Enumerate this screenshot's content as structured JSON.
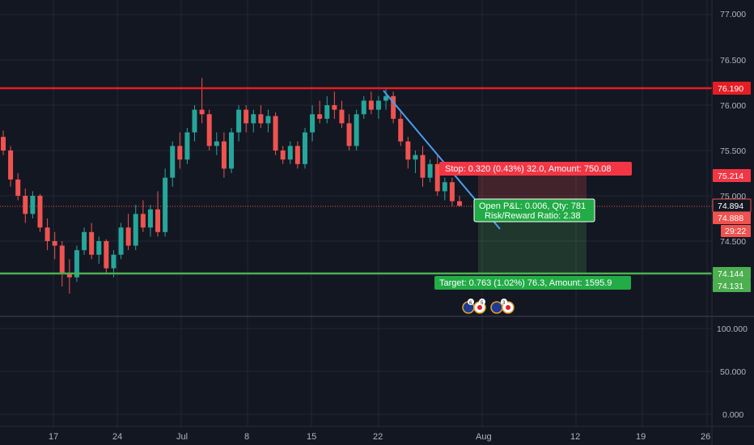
{
  "chart": {
    "price_axis_labels": [
      "77.000",
      "76.500",
      "76.000",
      "75.500",
      "75.000",
      "74.500"
    ],
    "volume_axis_labels": [
      "100.000",
      "50.000",
      "0.000"
    ],
    "date_labels": [
      "17",
      "24",
      "Jul",
      "8",
      "15",
      "22",
      "Aug",
      "12",
      "19",
      "26"
    ],
    "resistance_price": "76.190",
    "support_price": "74.144",
    "stop_level_price": "75.214",
    "current_price_close": "74.894",
    "current_price_bid": "74.888",
    "countdown": "29:22",
    "support_sub_price": "74.131",
    "stop_label": "Stop: 0.320 (0.43%) 32.0, Amount: 750.08",
    "open_pnl_line1": "Open P&L: 0.006, Qty: 781",
    "open_pnl_line2": "Risk/Reward Ratio: 2.38",
    "target_label": "Target: 0.763 (1.02%) 76.3, Amount: 1595.9",
    "event_icon_counts": [
      "6",
      "5",
      "3"
    ]
  },
  "colors": {
    "background": "#131722",
    "grid": "#2a2e39",
    "up_candle": "#26a69a",
    "down_candle": "#ef5350",
    "resistance": "#e31e24",
    "support": "#4caf50",
    "trendline": "#2196f3",
    "stop_zone": "rgba(239,83,80,0.25)",
    "target_zone": "rgba(76,175,80,0.22)"
  },
  "chart_data": {
    "type": "candlestick",
    "x_ticks": [
      "17",
      "24",
      "Jul",
      "8",
      "15",
      "22",
      "Aug",
      "12",
      "19",
      "26"
    ],
    "y_range": [
      74.0,
      77.2
    ],
    "horizontal_levels": [
      {
        "price": 76.19,
        "color": "#e31e24"
      },
      {
        "price": 74.144,
        "color": "#4caf50"
      }
    ],
    "trendline": {
      "from": {
        "date": "Jul 22",
        "price": 76.17
      },
      "to": {
        "date": "Aug 3",
        "price": 74.67
      }
    },
    "position": {
      "entry": 74.894,
      "stop": 75.214,
      "target": 74.131,
      "risk_reward": 2.38
    },
    "candles_ohlc": [
      [
        75.65,
        75.72,
        75.45,
        75.5
      ],
      [
        75.5,
        75.55,
        75.1,
        75.18
      ],
      [
        75.18,
        75.25,
        74.95,
        75.0
      ],
      [
        75.0,
        75.08,
        74.7,
        74.8
      ],
      [
        74.8,
        75.05,
        74.75,
        75.0
      ],
      [
        75.0,
        75.02,
        74.6,
        74.65
      ],
      [
        74.65,
        74.75,
        74.4,
        74.5
      ],
      [
        74.5,
        74.6,
        74.3,
        74.45
      ],
      [
        74.45,
        74.5,
        74.0,
        74.15
      ],
      [
        74.15,
        74.3,
        73.92,
        74.1
      ],
      [
        74.1,
        74.45,
        74.05,
        74.4
      ],
      [
        74.4,
        74.65,
        74.35,
        74.6
      ],
      [
        74.6,
        74.7,
        74.3,
        74.35
      ],
      [
        74.35,
        74.55,
        74.25,
        74.5
      ],
      [
        74.5,
        74.52,
        74.15,
        74.2
      ],
      [
        74.2,
        74.4,
        74.1,
        74.35
      ],
      [
        74.35,
        74.7,
        74.3,
        74.65
      ],
      [
        74.65,
        74.8,
        74.4,
        74.45
      ],
      [
        74.45,
        74.9,
        74.4,
        74.8
      ],
      [
        74.8,
        74.95,
        74.6,
        74.65
      ],
      [
        74.65,
        74.9,
        74.55,
        74.85
      ],
      [
        74.85,
        75.05,
        74.55,
        74.6
      ],
      [
        74.6,
        75.3,
        74.55,
        75.2
      ],
      [
        75.2,
        75.6,
        75.1,
        75.55
      ],
      [
        75.55,
        75.7,
        75.3,
        75.4
      ],
      [
        75.4,
        75.75,
        75.35,
        75.7
      ],
      [
        75.7,
        76.0,
        75.6,
        75.95
      ],
      [
        75.95,
        76.3,
        75.8,
        75.9
      ],
      [
        75.9,
        75.95,
        75.5,
        75.55
      ],
      [
        75.55,
        75.7,
        75.45,
        75.6
      ],
      [
        75.6,
        75.7,
        75.2,
        75.3
      ],
      [
        75.3,
        75.75,
        75.25,
        75.7
      ],
      [
        75.7,
        76.0,
        75.6,
        75.95
      ],
      [
        75.95,
        76.0,
        75.7,
        75.8
      ],
      [
        75.8,
        75.95,
        75.7,
        75.9
      ],
      [
        75.9,
        76.0,
        75.75,
        75.8
      ],
      [
        75.8,
        75.95,
        75.7,
        75.88
      ],
      [
        75.88,
        75.92,
        75.45,
        75.5
      ],
      [
        75.5,
        75.55,
        75.35,
        75.4
      ],
      [
        75.4,
        75.6,
        75.35,
        75.55
      ],
      [
        75.55,
        75.6,
        75.3,
        75.35
      ],
      [
        75.35,
        75.75,
        75.3,
        75.7
      ],
      [
        75.7,
        76.0,
        75.6,
        75.9
      ],
      [
        75.9,
        76.05,
        75.8,
        75.85
      ],
      [
        75.85,
        76.1,
        75.8,
        76.0
      ],
      [
        76.0,
        76.15,
        75.85,
        75.95
      ],
      [
        75.95,
        76.05,
        75.75,
        75.8
      ],
      [
        75.8,
        75.9,
        75.5,
        75.55
      ],
      [
        75.55,
        75.95,
        75.5,
        75.9
      ],
      [
        75.9,
        76.1,
        75.85,
        76.05
      ],
      [
        76.05,
        76.15,
        75.9,
        75.95
      ],
      [
        75.95,
        76.1,
        75.85,
        76.05
      ],
      [
        76.05,
        76.18,
        75.95,
        76.1
      ],
      [
        76.1,
        76.15,
        75.8,
        75.85
      ],
      [
        75.85,
        75.95,
        75.55,
        75.6
      ],
      [
        75.6,
        75.65,
        75.3,
        75.4
      ],
      [
        75.4,
        75.5,
        75.25,
        75.45
      ],
      [
        75.45,
        75.55,
        75.1,
        75.2
      ],
      [
        75.2,
        75.4,
        75.15,
        75.35
      ],
      [
        75.35,
        75.45,
        75.0,
        75.05
      ],
      [
        75.05,
        75.2,
        74.95,
        75.15
      ],
      [
        75.15,
        75.2,
        74.88,
        74.94
      ],
      [
        74.94,
        75.0,
        74.88,
        74.89
      ]
    ]
  }
}
